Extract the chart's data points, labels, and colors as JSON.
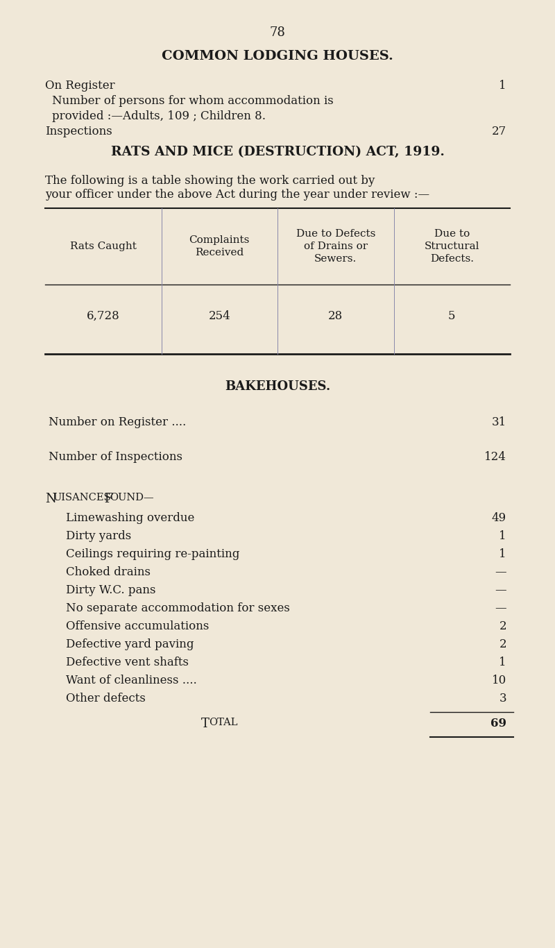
{
  "bg_color": "#f0e8d8",
  "text_color": "#1a1a1a",
  "page_number": "78",
  "section1_title": "COMMON LODGING HOUSES.",
  "section1_lines": [
    {
      "text": "On Register",
      "dots": true,
      "value": "1",
      "indent": 0
    },
    {
      "text": "Number of persons for whom accommodation is",
      "dots": false,
      "value": "",
      "indent": 1
    },
    {
      "text": "provided :—Adults, 109 ; Children 8.",
      "dots": false,
      "value": "",
      "indent": 1
    },
    {
      "text": "Inspections",
      "dots": true,
      "value": "27",
      "indent": 0
    }
  ],
  "section2_title": "RATS AND MICE (DESTRUCTION) ACT, 1919.",
  "section2_intro": "The following is a table showing the work carried out by your officer under the above Act during the year under review :—",
  "table_headers": [
    "Rats Caught",
    "Complaints\nReceived",
    "Due to Defects\nof Drains or\nSewers.",
    "Due to\nStructural\nDefects."
  ],
  "table_values": [
    "6,728",
    "254",
    "28",
    "5"
  ],
  "section3_title": "BAKEHOUSES.",
  "section3_lines": [
    {
      "text": "Number on Register ....",
      "dots": true,
      "value": "31"
    },
    {
      "text": "Number of Inspections",
      "dots": true,
      "value": "124"
    }
  ],
  "nuisances_title": "Nuisances Found—",
  "nuisances_items": [
    {
      "text": "Limewashing overdue",
      "value": "49"
    },
    {
      "text": "Dirty yards",
      "value": "1"
    },
    {
      "text": "Ceilings requiring re-painting",
      "value": "1"
    },
    {
      "text": "Choked drains",
      "value": "—"
    },
    {
      "text": "Dirty W.C. pans",
      "value": "—"
    },
    {
      "text": "No separate accommodation for sexes",
      "value": "—"
    },
    {
      "text": "Offensive accumulations",
      "value": "2"
    },
    {
      "text": "Defective yard paving",
      "value": "2"
    },
    {
      "text": "Defective vent shafts",
      "value": "1"
    },
    {
      "text": "Want of cleanliness ....",
      "value": "10"
    },
    {
      "text": "Other defects",
      "value": "3"
    }
  ],
  "total_label": "Total",
  "total_value": "69"
}
